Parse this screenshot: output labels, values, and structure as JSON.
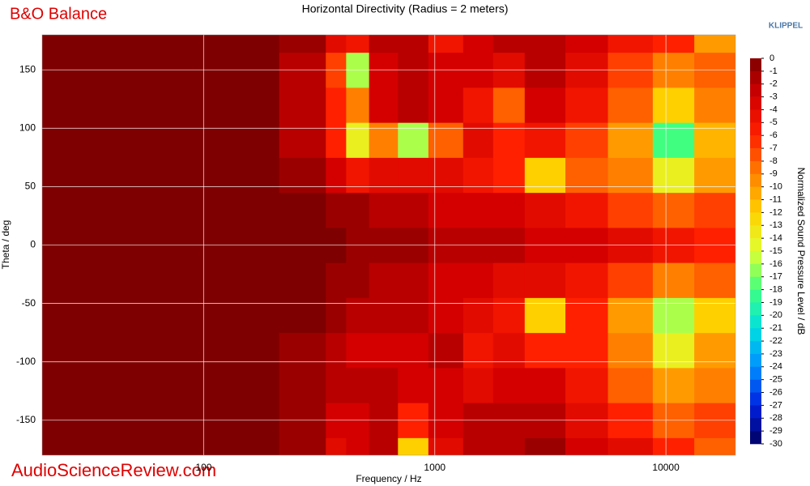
{
  "chart_data": {
    "type": "heatmap",
    "title": "Horizontal Directivity (Radius = 2 meters)",
    "brand": "B&O Balance",
    "logo": "KLIPPEL",
    "watermark": "AudioScienceReview.com",
    "xlabel": "Frequency / Hz",
    "ylabel": "Theta / deg",
    "colorbar_label": "Normalized Sound Pressure Level / dB",
    "xscale": "log",
    "grid": true,
    "xlim": [
      20,
      20000
    ],
    "xticks": [
      100,
      1000,
      10000
    ],
    "ylim": [
      -180,
      180
    ],
    "yticks": [
      -150,
      -100,
      -50,
      0,
      50,
      100,
      150
    ],
    "zlim": [
      -30,
      0
    ],
    "zticks": [
      0,
      -1,
      -2,
      -3,
      -4,
      -5,
      -6,
      -7,
      -8,
      -9,
      -10,
      -11,
      -12,
      -13,
      -14,
      -15,
      -16,
      -17,
      -18,
      -19,
      -20,
      -21,
      -22,
      -23,
      -24,
      -25,
      -26,
      -27,
      -28,
      -29,
      -30
    ],
    "colormap": [
      "#7f0000",
      "#d40000",
      "#ff2000",
      "#ff8000",
      "#ffd000",
      "#e0ff30",
      "#40ff80",
      "#00e0e0",
      "#0090ff",
      "#0020e0",
      "#000060"
    ],
    "x": [
      25,
      60,
      150,
      300,
      380,
      450,
      600,
      800,
      1100,
      1600,
      2000,
      3000,
      4500,
      7000,
      11000,
      16000
    ],
    "y": [
      -180,
      -150,
      -120,
      -90,
      -60,
      -30,
      0,
      30,
      60,
      90,
      120,
      150,
      180
    ],
    "z": [
      [
        0,
        0,
        0,
        -1,
        -4,
        -3,
        -2,
        -12,
        -4,
        -2,
        -2,
        -1,
        -3,
        -4,
        -6,
        -8
      ],
      [
        0,
        0,
        0,
        -1,
        -3,
        -3,
        -2,
        -6,
        -3,
        -2,
        -2,
        -2,
        -4,
        -6,
        -8,
        -7
      ],
      [
        0,
        0,
        0,
        -1,
        -2,
        -2,
        -2,
        -3,
        -3,
        -4,
        -3,
        -3,
        -5,
        -8,
        -10,
        -9
      ],
      [
        0,
        0,
        0,
        -1,
        -2,
        -3,
        -3,
        -3,
        -2,
        -5,
        -4,
        -6,
        -6,
        -9,
        -14,
        -10
      ],
      [
        0,
        0,
        0,
        0,
        -1,
        -2,
        -2,
        -2,
        -3,
        -4,
        -5,
        -12,
        -6,
        -10,
        -16,
        -12
      ],
      [
        0,
        0,
        0,
        0,
        -1,
        -1,
        -2,
        -2,
        -3,
        -3,
        -4,
        -4,
        -5,
        -7,
        -9,
        -8
      ],
      [
        0,
        0,
        0,
        0,
        0,
        -1,
        -1,
        -1,
        -2,
        -2,
        -2,
        -3,
        -3,
        -4,
        -5,
        -6
      ],
      [
        0,
        0,
        0,
        0,
        -1,
        -1,
        -2,
        -2,
        -3,
        -3,
        -3,
        -4,
        -5,
        -7,
        -8,
        -7
      ],
      [
        0,
        0,
        0,
        -1,
        -3,
        -5,
        -4,
        -4,
        -4,
        -5,
        -6,
        -12,
        -8,
        -9,
        -14,
        -10
      ],
      [
        0,
        0,
        0,
        -2,
        -6,
        -14,
        -9,
        -16,
        -8,
        -4,
        -6,
        -5,
        -7,
        -10,
        -18,
        -11
      ],
      [
        0,
        0,
        0,
        -2,
        -6,
        -9,
        -3,
        -2,
        -3,
        -5,
        -8,
        -3,
        -5,
        -8,
        -12,
        -9
      ],
      [
        0,
        0,
        0,
        -2,
        -7,
        -16,
        -3,
        -2,
        -3,
        -3,
        -4,
        -2,
        -4,
        -7,
        -9,
        -8
      ],
      [
        0,
        0,
        0,
        -1,
        -4,
        -5,
        -2,
        -2,
        -5,
        -3,
        -2,
        -2,
        -3,
        -5,
        -6,
        -10
      ]
    ]
  }
}
